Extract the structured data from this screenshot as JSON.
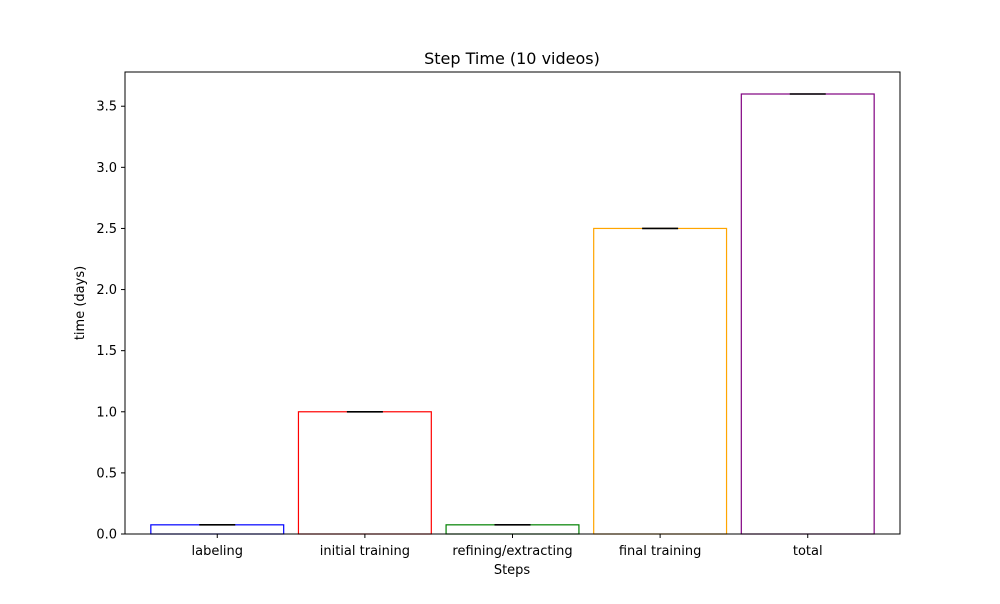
{
  "chart_data": {
    "type": "bar",
    "title": "Step Time (10 videos)",
    "xlabel": "Steps",
    "ylabel": "time (days)",
    "categories": [
      "labeling",
      "initial training",
      "refining/extracting",
      "final training",
      "total"
    ],
    "values": [
      0.075,
      1.0,
      0.075,
      2.5,
      3.6
    ],
    "errors": [
      0,
      0,
      0,
      0,
      0
    ],
    "bar_fill": "none",
    "colors": [
      "#0000ff",
      "#ff0000",
      "#008000",
      "#ffa500",
      "#800080"
    ],
    "error_color": "#000000",
    "ylim": [
      0,
      3.78
    ],
    "yticks": [
      0.0,
      0.5,
      1.0,
      1.5,
      2.0,
      2.5,
      3.0,
      3.5
    ],
    "ytick_labels": [
      "0.0",
      "0.5",
      "1.0",
      "1.5",
      "2.0",
      "2.5",
      "3.0",
      "3.5"
    ],
    "grid": false,
    "legend": "none"
  }
}
